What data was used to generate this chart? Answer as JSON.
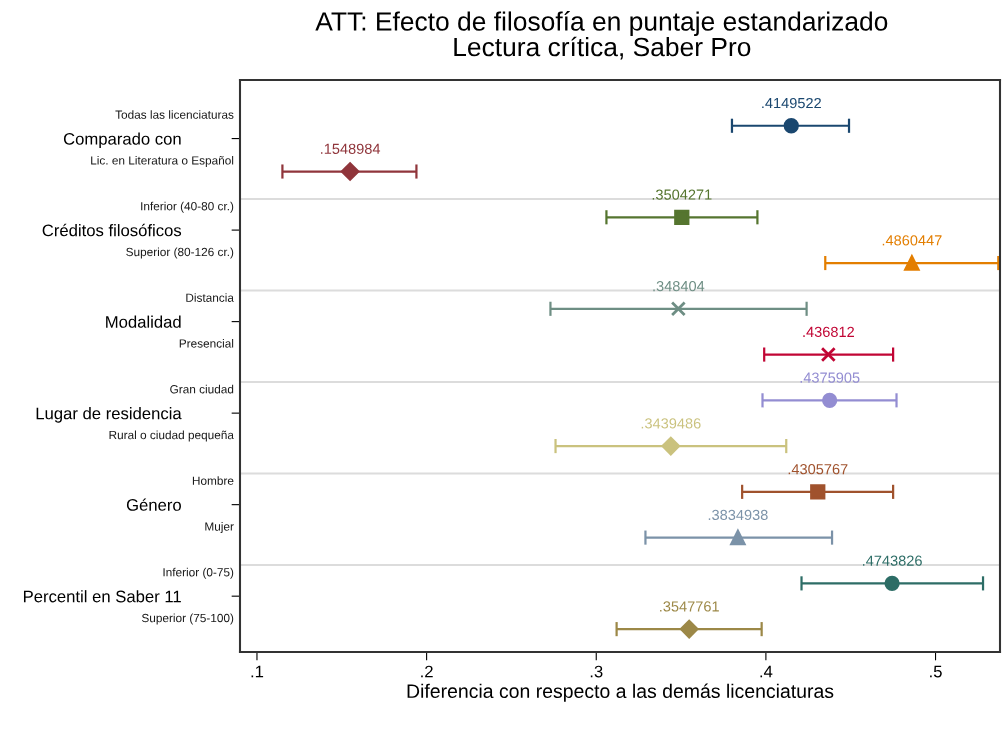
{
  "chart_data": {
    "type": "scatter",
    "orientation": "horizontal",
    "title": "ATT: Efecto de filosofía en puntaje estandarizado\nLectura crítica, Saber Pro",
    "xlabel": "Diferencia con respecto a las demás licenciaturas",
    "categories": [
      "Todas las licenciaturas",
      "Lic. en Literatura o Español",
      "Inferior (40-80 cr.)",
      "Superior (80-126 cr.)",
      "Distancia",
      "Presencial",
      "Gran ciudad",
      "Rural o ciudad pequeña",
      "Hombre",
      "Mujer",
      "Inferior (0-75)",
      "Superior (75-100)"
    ],
    "annotations": [
      "Comparado con",
      "Créditos filosóficos",
      "Modalidad",
      "Lugar de residencia",
      "Género",
      "Percentil en Saber 11"
    ],
    "xlim": [
      0.09,
      0.538
    ],
    "xticks": [
      {
        "value": 0.1,
        "label": ".1"
      },
      {
        "value": 0.2,
        "label": ".2"
      },
      {
        "value": 0.3,
        "label": ".3"
      },
      {
        "value": 0.4,
        "label": ".4"
      },
      {
        "value": 0.5,
        "label": ".5"
      }
    ],
    "grid": false,
    "series": [
      {
        "color": "#1a476f",
        "marker": "circle",
        "values": [
          0.4149522,
          null,
          null,
          null,
          null,
          null,
          null,
          null,
          null,
          null,
          null,
          null
        ],
        "errors": [
          [
            0.38,
            0.449
          ],
          null,
          null,
          null,
          null,
          null,
          null,
          null,
          null,
          null,
          null,
          null
        ],
        "value_labels": [
          ".4149522",
          null,
          null,
          null,
          null,
          null,
          null,
          null,
          null,
          null,
          null,
          null
        ]
      },
      {
        "color": "#90353b",
        "marker": "diamond",
        "values": [
          null,
          0.1548984,
          null,
          null,
          null,
          null,
          null,
          null,
          null,
          null,
          null,
          null
        ],
        "errors": [
          null,
          [
            0.115,
            0.194
          ],
          null,
          null,
          null,
          null,
          null,
          null,
          null,
          null,
          null,
          null
        ],
        "value_labels": [
          null,
          ".1548984",
          null,
          null,
          null,
          null,
          null,
          null,
          null,
          null,
          null,
          null
        ]
      },
      {
        "color": "#55752f",
        "marker": "square",
        "values": [
          null,
          null,
          0.3504271,
          null,
          null,
          null,
          null,
          null,
          null,
          null,
          null,
          null
        ],
        "errors": [
          null,
          null,
          [
            0.306,
            0.395
          ],
          null,
          null,
          null,
          null,
          null,
          null,
          null,
          null,
          null
        ],
        "value_labels": [
          null,
          null,
          ".3504271",
          null,
          null,
          null,
          null,
          null,
          null,
          null,
          null,
          null
        ]
      },
      {
        "color": "#e37e00",
        "marker": "triangle",
        "values": [
          null,
          null,
          null,
          0.4860447,
          null,
          null,
          null,
          null,
          null,
          null,
          null,
          null
        ],
        "errors": [
          null,
          null,
          null,
          [
            0.435,
            0.537
          ],
          null,
          null,
          null,
          null,
          null,
          null,
          null,
          null
        ],
        "value_labels": [
          null,
          null,
          null,
          ".4860447",
          null,
          null,
          null,
          null,
          null,
          null,
          null,
          null
        ]
      },
      {
        "color": "#6e8e84",
        "marker": "cross",
        "values": [
          null,
          null,
          null,
          null,
          0.348404,
          null,
          null,
          null,
          null,
          null,
          null,
          null
        ],
        "errors": [
          null,
          null,
          null,
          null,
          [
            0.273,
            0.424
          ],
          null,
          null,
          null,
          null,
          null,
          null,
          null
        ],
        "value_labels": [
          null,
          null,
          null,
          null,
          ".348404",
          null,
          null,
          null,
          null,
          null,
          null,
          null
        ]
      },
      {
        "color": "#c10534",
        "marker": "cross",
        "values": [
          null,
          null,
          null,
          null,
          null,
          0.436812,
          null,
          null,
          null,
          null,
          null,
          null
        ],
        "errors": [
          null,
          null,
          null,
          null,
          null,
          [
            0.399,
            0.475
          ],
          null,
          null,
          null,
          null,
          null,
          null
        ],
        "value_labels": [
          null,
          null,
          null,
          null,
          null,
          ".436812",
          null,
          null,
          null,
          null,
          null,
          null
        ]
      },
      {
        "color": "#938dd2",
        "marker": "circle",
        "values": [
          null,
          null,
          null,
          null,
          null,
          null,
          0.4375905,
          null,
          null,
          null,
          null,
          null
        ],
        "errors": [
          null,
          null,
          null,
          null,
          null,
          null,
          [
            0.398,
            0.477
          ],
          null,
          null,
          null,
          null,
          null
        ],
        "value_labels": [
          null,
          null,
          null,
          null,
          null,
          null,
          ".4375905",
          null,
          null,
          null,
          null,
          null
        ]
      },
      {
        "color": "#cac27e",
        "marker": "diamond",
        "values": [
          null,
          null,
          null,
          null,
          null,
          null,
          null,
          0.3439486,
          null,
          null,
          null,
          null
        ],
        "errors": [
          null,
          null,
          null,
          null,
          null,
          null,
          null,
          [
            0.276,
            0.412
          ],
          null,
          null,
          null,
          null
        ],
        "value_labels": [
          null,
          null,
          null,
          null,
          null,
          null,
          null,
          ".3439486",
          null,
          null,
          null,
          null
        ]
      },
      {
        "color": "#a0522d",
        "marker": "square",
        "values": [
          null,
          null,
          null,
          null,
          null,
          null,
          null,
          null,
          0.4305767,
          null,
          null,
          null
        ],
        "errors": [
          null,
          null,
          null,
          null,
          null,
          null,
          null,
          null,
          [
            0.386,
            0.475
          ],
          null,
          null,
          null
        ],
        "value_labels": [
          null,
          null,
          null,
          null,
          null,
          null,
          null,
          null,
          ".4305767",
          null,
          null,
          null
        ]
      },
      {
        "color": "#7b92a8",
        "marker": "triangle",
        "values": [
          null,
          null,
          null,
          null,
          null,
          null,
          null,
          null,
          null,
          0.3834938,
          null,
          null
        ],
        "errors": [
          null,
          null,
          null,
          null,
          null,
          null,
          null,
          null,
          null,
          [
            0.329,
            0.439
          ],
          null,
          null
        ],
        "value_labels": [
          null,
          null,
          null,
          null,
          null,
          null,
          null,
          null,
          null,
          ".3834938",
          null,
          null
        ]
      },
      {
        "color": "#2d6d66",
        "marker": "circle",
        "values": [
          null,
          null,
          null,
          null,
          null,
          null,
          null,
          null,
          null,
          null,
          0.4743826,
          null
        ],
        "errors": [
          null,
          null,
          null,
          null,
          null,
          null,
          null,
          null,
          null,
          null,
          [
            0.421,
            0.528
          ],
          null
        ],
        "value_labels": [
          null,
          null,
          null,
          null,
          null,
          null,
          null,
          null,
          null,
          null,
          ".4743826",
          null
        ]
      },
      {
        "color": "#9c8847",
        "marker": "diamond",
        "values": [
          null,
          null,
          null,
          null,
          null,
          null,
          null,
          null,
          null,
          null,
          null,
          0.3547761
        ],
        "errors": [
          null,
          null,
          null,
          null,
          null,
          null,
          null,
          null,
          null,
          null,
          null,
          [
            0.312,
            0.3975
          ]
        ],
        "value_labels": [
          null,
          null,
          null,
          null,
          null,
          null,
          null,
          null,
          null,
          null,
          null,
          ".3547761"
        ]
      }
    ]
  }
}
